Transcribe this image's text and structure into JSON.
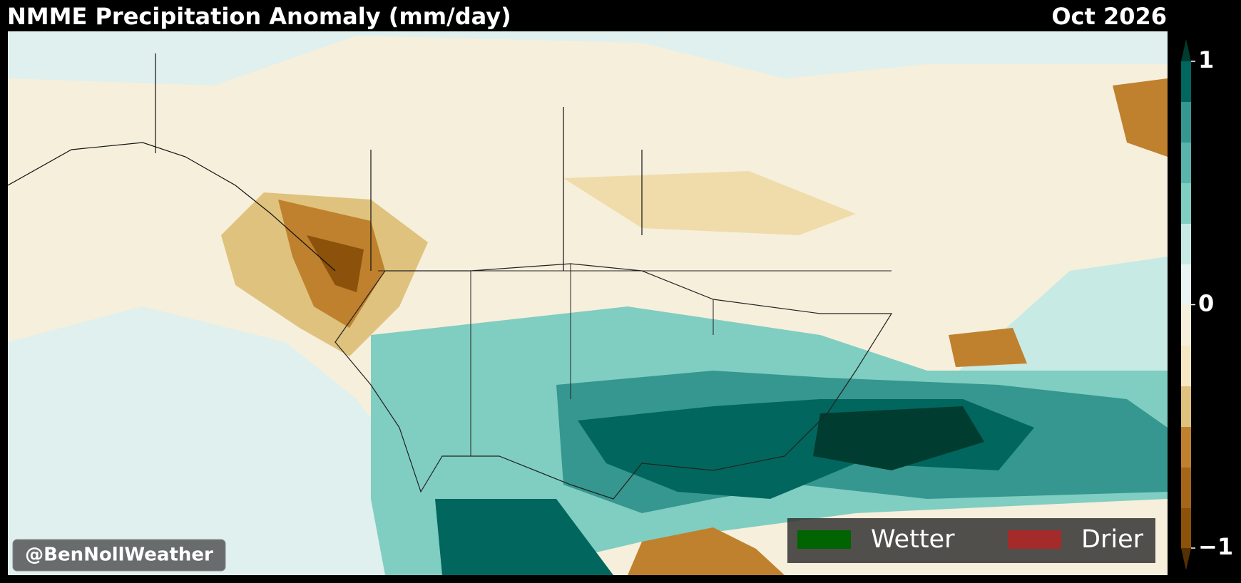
{
  "header": {
    "title": "NMME Precipitation Anomaly (mm/day)",
    "date": "Oct 2026"
  },
  "colorbar": {
    "ticks": [
      1,
      0,
      {
        "value": -1,
        "label": "−1"
      }
    ]
  },
  "legend": {
    "items": [
      {
        "label": "Wetter",
        "color": "#006400"
      },
      {
        "label": "Drier",
        "color": "#a52a2a"
      }
    ]
  },
  "watermark": "@BenNollWeather"
}
